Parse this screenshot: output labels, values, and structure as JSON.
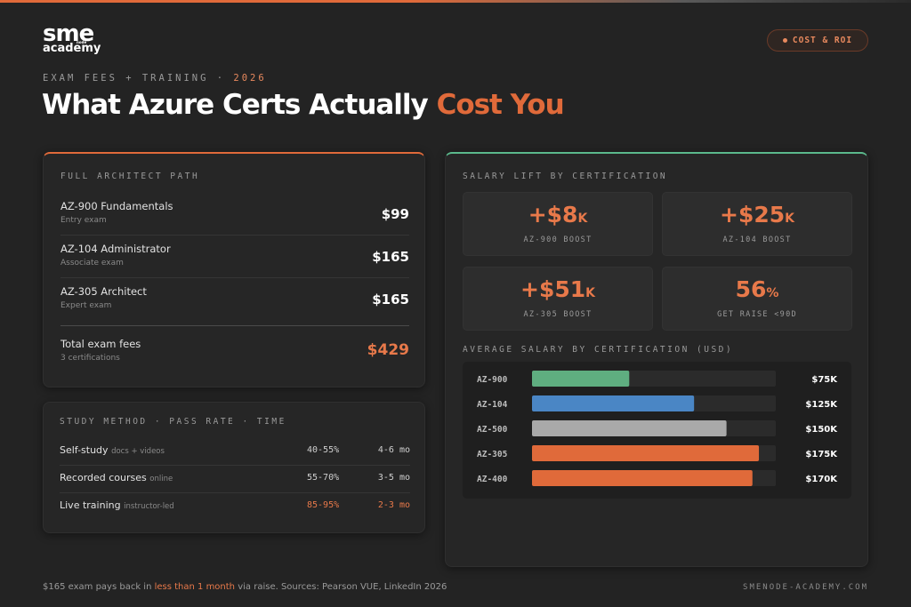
{
  "brand": {
    "logo_top": "sme",
    "logo_bottom": "academy",
    "logo_mid": "node"
  },
  "badge": {
    "label": "COST & ROI"
  },
  "header": {
    "eyebrow": "EXAM FEES + TRAINING · ",
    "eyebrow_year": "2026",
    "title_main": "What Azure Certs Actually ",
    "title_accent": "Cost You"
  },
  "architect_path": {
    "label": "FULL ARCHITECT PATH",
    "exams": [
      {
        "name": "AZ-900 Fundamentals",
        "sub": "Entry exam",
        "price": "$99"
      },
      {
        "name": "AZ-104 Administrator",
        "sub": "Associate exam",
        "price": "$165"
      },
      {
        "name": "AZ-305 Architect",
        "sub": "Expert exam",
        "price": "$165"
      }
    ],
    "total": {
      "name": "Total exam fees",
      "sub": "3 certifications",
      "price": "$429"
    }
  },
  "study": {
    "label": "STUDY METHOD · PASS RATE · TIME",
    "rows": [
      {
        "name": "Self-study",
        "tag": "docs + videos",
        "rate": "40-55%",
        "time": "4-6 mo"
      },
      {
        "name": "Recorded courses",
        "tag": "online",
        "rate": "55-70%",
        "time": "3-5 mo"
      },
      {
        "name": "Live training",
        "tag": "instructor-led",
        "rate": "85-95%",
        "time": "2-3 mo"
      }
    ]
  },
  "salary": {
    "label": "SALARY LIFT BY CERTIFICATION",
    "stats": [
      {
        "value": "+$8",
        "unit": "K",
        "label": "AZ-900 BOOST"
      },
      {
        "value": "+$25",
        "unit": "K",
        "label": "AZ-104 BOOST"
      },
      {
        "value": "+$51",
        "unit": "K",
        "label": "AZ-305 BOOST"
      },
      {
        "value": "56",
        "unit": "%",
        "label": "GET RAISE <90D"
      }
    ],
    "chart_label": "AVERAGE SALARY BY CERTIFICATION (USD)"
  },
  "chart_data": {
    "type": "bar",
    "orientation": "horizontal",
    "title": "AVERAGE SALARY BY CERTIFICATION (USD)",
    "categories": [
      "AZ-900",
      "AZ-104",
      "AZ-500",
      "AZ-305",
      "AZ-400"
    ],
    "values": [
      75,
      125,
      150,
      175,
      170
    ],
    "value_labels": [
      "$75K",
      "$125K",
      "$150K",
      "$175K",
      "$170K"
    ],
    "colors": [
      "#5fae80",
      "#4a86c5",
      "#a9a9a9",
      "#e06a3a",
      "#e06a3a"
    ],
    "xlim": [
      0,
      188
    ]
  },
  "footer": {
    "pre": "$165 exam pays back in ",
    "highlight": "less than 1 month",
    "post": " via raise. Sources: Pearson VUE, LinkedIn 2026",
    "site": "SMENODE-ACADEMY.COM"
  }
}
